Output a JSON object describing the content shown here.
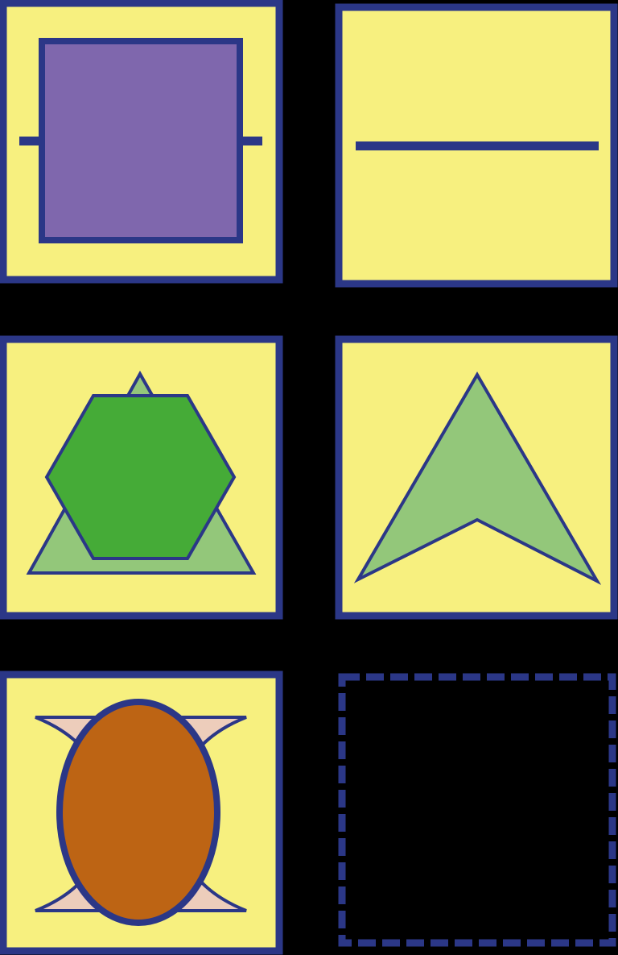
{
  "colors": {
    "background": "#000000",
    "panel_fill": "#f7f07f",
    "outline": "#2b3787",
    "purple": "#7f67ad",
    "hex_green": "#45ab37",
    "light_green": "#93c77a",
    "orange": "#bd6414",
    "pink": "#edcdbb"
  },
  "panels": [
    {
      "id": "panel-1",
      "shape": "square-with-stubs"
    },
    {
      "id": "panel-2",
      "shape": "horizontal-line"
    },
    {
      "id": "panel-3",
      "shape": "hexagon-over-triangle"
    },
    {
      "id": "panel-4",
      "shape": "arrowhead"
    },
    {
      "id": "panel-5",
      "shape": "ellipse-over-concave-shape"
    },
    {
      "id": "panel-6",
      "shape": "empty-dashed-frame"
    }
  ]
}
